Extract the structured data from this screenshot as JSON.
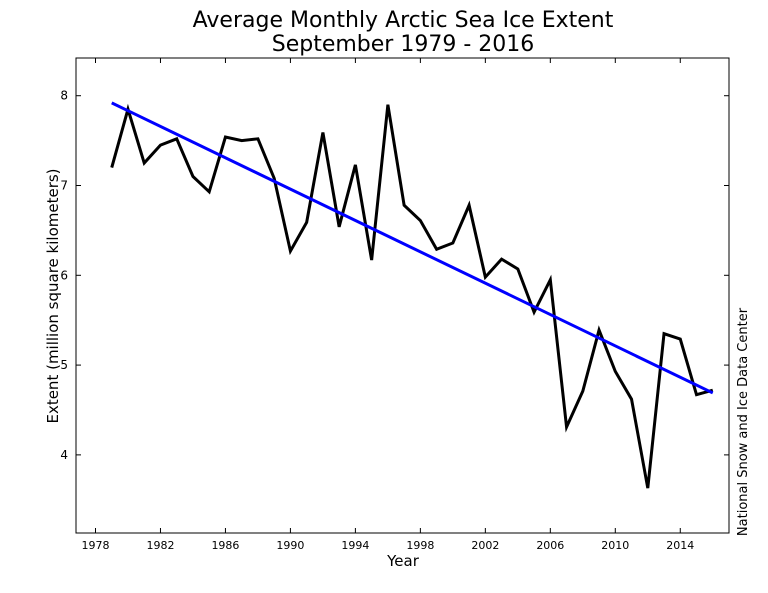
{
  "chart_data": {
    "type": "line",
    "title": "Average Monthly Arctic Sea Ice Extent",
    "subtitle": "September 1979 - 2016",
    "xlabel": "Year",
    "ylabel": "Extent (million square kilometers)",
    "right_label": "National Snow and Ice Data Center",
    "xlim": [
      1976.8,
      2017
    ],
    "ylim": [
      3.13,
      8.42
    ],
    "xticks": [
      1978,
      1982,
      1986,
      1990,
      1994,
      1998,
      2002,
      2006,
      2010,
      2014
    ],
    "yticks": [
      4,
      5,
      6,
      7,
      8
    ],
    "grid": false,
    "x": [
      1979,
      1980,
      1981,
      1982,
      1983,
      1984,
      1985,
      1986,
      1987,
      1988,
      1989,
      1990,
      1991,
      1992,
      1993,
      1994,
      1995,
      1996,
      1997,
      1998,
      1999,
      2000,
      2001,
      2002,
      2003,
      2004,
      2005,
      2006,
      2007,
      2008,
      2009,
      2010,
      2011,
      2012,
      2013,
      2014,
      2015,
      2016
    ],
    "series": [
      {
        "color": "#000000",
        "values": [
          7.2,
          7.85,
          7.25,
          7.45,
          7.52,
          7.1,
          6.93,
          7.54,
          7.5,
          7.52,
          7.08,
          6.27,
          6.59,
          7.59,
          6.54,
          7.23,
          6.17,
          7.9,
          6.78,
          6.61,
          6.29,
          6.36,
          6.78,
          5.98,
          6.18,
          6.07,
          5.59,
          5.95,
          4.31,
          4.71,
          5.39,
          4.93,
          4.62,
          3.63,
          5.35,
          5.29,
          4.67,
          4.72
        ]
      },
      {
        "color": "#0000ff",
        "kind": "trend",
        "x": [
          1979,
          2016
        ],
        "values": [
          7.92,
          4.69
        ]
      }
    ]
  }
}
